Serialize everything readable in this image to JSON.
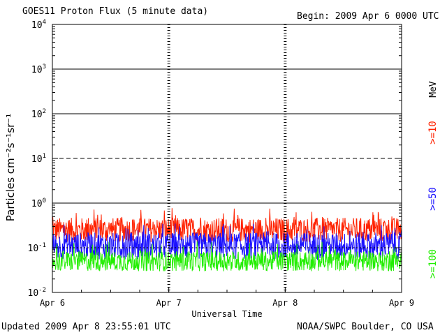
{
  "header": {
    "title": "GOES11 Proton Flux (5 minute data)",
    "begin": "Begin: 2009 Apr 6 0000 UTC"
  },
  "footer": {
    "updated": "Updated 2009 Apr  8 23:55:01 UTC",
    "source": "NOAA/SWPC Boulder, CO USA"
  },
  "chart_data": {
    "type": "line",
    "xlabel": "Universal Time",
    "ylabel": "Particles cm⁻²s⁻¹sr⁻¹",
    "x_ticks": [
      "Apr 6",
      "Apr 7",
      "Apr 8",
      "Apr 9"
    ],
    "y_scale": "log",
    "ylim": [
      0.01,
      10000
    ],
    "y_ticks": [
      {
        "base": "10",
        "exp": "-2"
      },
      {
        "base": "10",
        "exp": "-1"
      },
      {
        "base": "10",
        "exp": "0"
      },
      {
        "base": "10",
        "exp": "1"
      },
      {
        "base": "10",
        "exp": "2"
      },
      {
        "base": "10",
        "exp": "3"
      },
      {
        "base": "10",
        "exp": "4"
      }
    ],
    "threshold_lines": [
      1,
      10,
      100,
      1000
    ],
    "legend_placement": "right",
    "unit_label": "MeV",
    "series": [
      {
        "name": ">=10",
        "color": "#ff2200",
        "typical_flux": 0.25
      },
      {
        "name": ">=50",
        "color": "#1a10ff",
        "typical_flux": 0.11
      },
      {
        "name": ">=100",
        "color": "#22ee00",
        "typical_flux": 0.05
      }
    ]
  }
}
